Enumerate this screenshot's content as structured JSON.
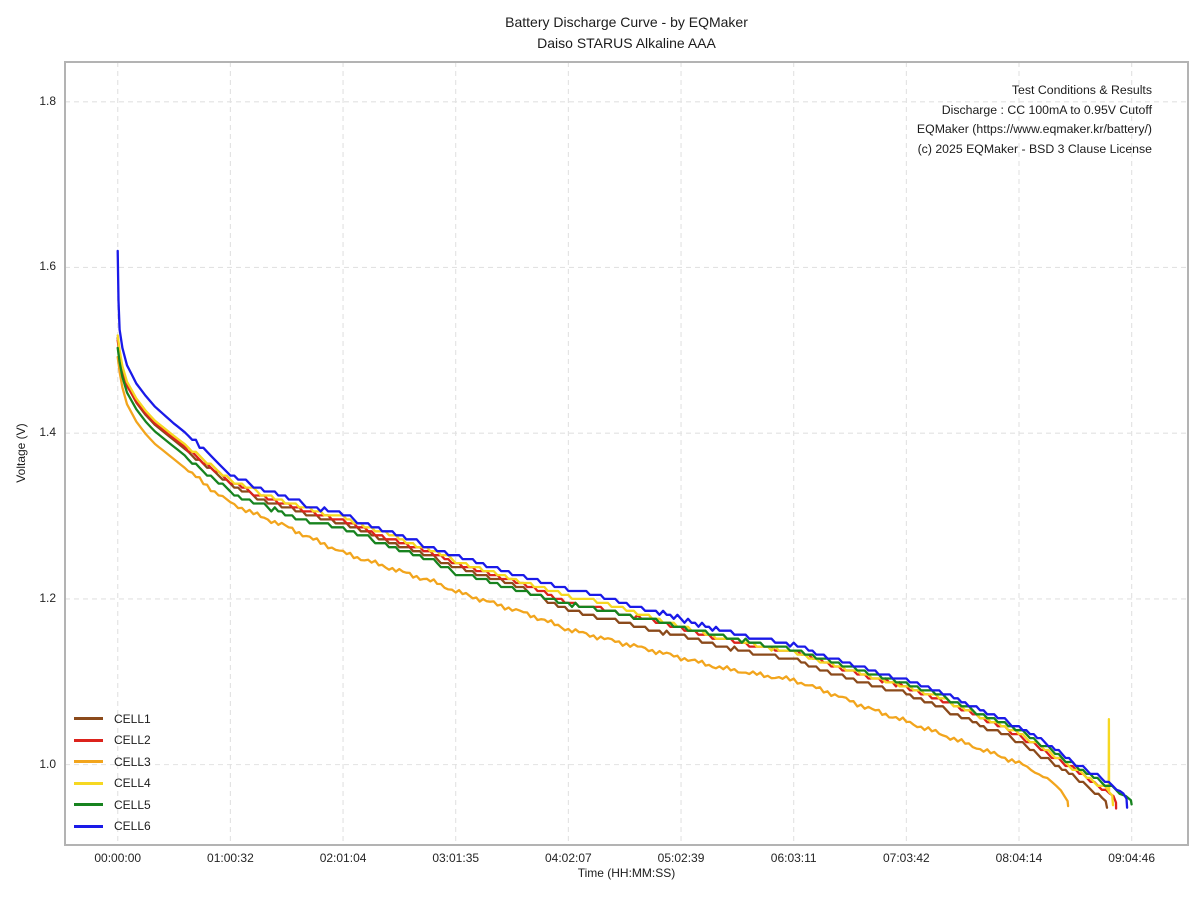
{
  "page": {
    "background": "#ffffff"
  },
  "chart_data": {
    "type": "line",
    "title": "Battery Discharge Curve - by EQMaker",
    "subtitle": "Daiso STARUS Alkaline AAA",
    "xlabel": "Time (HH:MM:SS)",
    "ylabel": "Voltage (V)",
    "annotation": {
      "align": "right",
      "lines": [
        "Test Conditions & Results",
        "Discharge : CC 100mA to 0.95V Cutoff",
        "EQMaker (https://www.eqmaker.kr/battery/)",
        "(c) 2025 EQMaker - BSD 3 Clause License"
      ]
    },
    "grid": true,
    "grid_style": "dashed",
    "grid_color": "#e2e2e2",
    "spine_color": "#b3b3b3",
    "legend_position": "lower-left",
    "x_domain_s": [
      -1700,
      34502
    ],
    "y_domain": [
      0.903,
      1.848
    ],
    "x_ticks": [
      {
        "s": 0,
        "label": "00:00:00"
      },
      {
        "s": 3632,
        "label": "01:00:32"
      },
      {
        "s": 7264,
        "label": "02:01:04"
      },
      {
        "s": 10895,
        "label": "03:01:35"
      },
      {
        "s": 14527,
        "label": "04:02:07"
      },
      {
        "s": 18159,
        "label": "05:02:39"
      },
      {
        "s": 21791,
        "label": "06:03:11"
      },
      {
        "s": 25423,
        "label": "07:03:42"
      },
      {
        "s": 29054,
        "label": "08:04:14"
      },
      {
        "s": 32686,
        "label": "09:04:46"
      }
    ],
    "y_ticks": [
      1.0,
      1.2,
      1.4,
      1.6,
      1.8
    ],
    "series": [
      {
        "name": "CELL1",
        "color": "#8B4A1B",
        "render": "stepped",
        "points": [
          [
            0,
            1.515
          ],
          [
            60,
            1.498
          ],
          [
            150,
            1.478
          ],
          [
            300,
            1.458
          ],
          [
            600,
            1.437
          ],
          [
            900,
            1.422
          ],
          [
            1200,
            1.41
          ],
          [
            1800,
            1.392
          ],
          [
            2400,
            1.374
          ],
          [
            3000,
            1.356
          ],
          [
            3632,
            1.338
          ],
          [
            4500,
            1.322
          ],
          [
            5400,
            1.31
          ],
          [
            6300,
            1.3
          ],
          [
            7264,
            1.292
          ],
          [
            8300,
            1.276
          ],
          [
            9300,
            1.262
          ],
          [
            10300,
            1.248
          ],
          [
            10895,
            1.238
          ],
          [
            12000,
            1.226
          ],
          [
            13200,
            1.21
          ],
          [
            14527,
            1.186
          ],
          [
            15800,
            1.176
          ],
          [
            17000,
            1.165
          ],
          [
            18159,
            1.155
          ],
          [
            19400,
            1.143
          ],
          [
            20600,
            1.134
          ],
          [
            21791,
            1.127
          ],
          [
            23000,
            1.112
          ],
          [
            24200,
            1.098
          ],
          [
            25423,
            1.086
          ],
          [
            26600,
            1.068
          ],
          [
            27800,
            1.048
          ],
          [
            29054,
            1.028
          ],
          [
            30000,
            1.006
          ],
          [
            31000,
            0.981
          ],
          [
            31500,
            0.968
          ],
          [
            31850,
            0.956
          ],
          [
            31890,
            0.948
          ]
        ]
      },
      {
        "name": "CELL2",
        "color": "#DC231C",
        "render": "stepped",
        "points": [
          [
            0,
            1.512
          ],
          [
            60,
            1.496
          ],
          [
            150,
            1.476
          ],
          [
            300,
            1.457
          ],
          [
            600,
            1.438
          ],
          [
            900,
            1.424
          ],
          [
            1200,
            1.412
          ],
          [
            1800,
            1.394
          ],
          [
            2400,
            1.377
          ],
          [
            3000,
            1.359
          ],
          [
            3632,
            1.341
          ],
          [
            4500,
            1.326
          ],
          [
            5400,
            1.314
          ],
          [
            6300,
            1.303
          ],
          [
            7264,
            1.295
          ],
          [
            8300,
            1.279
          ],
          [
            9300,
            1.266
          ],
          [
            10300,
            1.252
          ],
          [
            10895,
            1.244
          ],
          [
            12000,
            1.231
          ],
          [
            13200,
            1.216
          ],
          [
            14527,
            1.196
          ],
          [
            15800,
            1.186
          ],
          [
            17000,
            1.176
          ],
          [
            18159,
            1.164
          ],
          [
            19400,
            1.152
          ],
          [
            20600,
            1.143
          ],
          [
            21791,
            1.136
          ],
          [
            23000,
            1.121
          ],
          [
            24200,
            1.107
          ],
          [
            25423,
            1.094
          ],
          [
            26600,
            1.077
          ],
          [
            27800,
            1.057
          ],
          [
            29054,
            1.036
          ],
          [
            30000,
            1.014
          ],
          [
            31000,
            0.99
          ],
          [
            31600,
            0.975
          ],
          [
            32100,
            0.962
          ],
          [
            32180,
            0.954
          ],
          [
            32184,
            0.947
          ]
        ]
      },
      {
        "name": "CELL3",
        "color": "#F2A51D",
        "render": "noisy",
        "points": [
          [
            0,
            1.492
          ],
          [
            60,
            1.474
          ],
          [
            150,
            1.455
          ],
          [
            300,
            1.435
          ],
          [
            600,
            1.414
          ],
          [
            900,
            1.399
          ],
          [
            1200,
            1.387
          ],
          [
            1800,
            1.369
          ],
          [
            2400,
            1.351
          ],
          [
            3000,
            1.333
          ],
          [
            3632,
            1.316
          ],
          [
            4500,
            1.301
          ],
          [
            5400,
            1.288
          ],
          [
            6300,
            1.272
          ],
          [
            7264,
            1.256
          ],
          [
            8300,
            1.243
          ],
          [
            9300,
            1.231
          ],
          [
            10300,
            1.219
          ],
          [
            10895,
            1.209
          ],
          [
            12000,
            1.196
          ],
          [
            13200,
            1.182
          ],
          [
            14527,
            1.163
          ],
          [
            15800,
            1.151
          ],
          [
            17000,
            1.14
          ],
          [
            18159,
            1.129
          ],
          [
            19400,
            1.117
          ],
          [
            20600,
            1.109
          ],
          [
            21791,
            1.102
          ],
          [
            23000,
            1.086
          ],
          [
            24200,
            1.068
          ],
          [
            25423,
            1.052
          ],
          [
            26600,
            1.036
          ],
          [
            27800,
            1.019
          ],
          [
            29054,
            1.002
          ],
          [
            29700,
            0.989
          ],
          [
            30100,
            0.979
          ],
          [
            30400,
            0.969
          ],
          [
            30620,
            0.956
          ],
          [
            30636,
            0.95
          ]
        ]
      },
      {
        "name": "CELL4",
        "color": "#F6D822",
        "render": "stepped",
        "points": [
          [
            0,
            1.518
          ],
          [
            60,
            1.5
          ],
          [
            150,
            1.481
          ],
          [
            300,
            1.462
          ],
          [
            600,
            1.442
          ],
          [
            900,
            1.427
          ],
          [
            1200,
            1.415
          ],
          [
            1800,
            1.397
          ],
          [
            2400,
            1.38
          ],
          [
            3000,
            1.362
          ],
          [
            3632,
            1.344
          ],
          [
            4500,
            1.329
          ],
          [
            5400,
            1.317
          ],
          [
            6300,
            1.307
          ],
          [
            7264,
            1.299
          ],
          [
            8300,
            1.283
          ],
          [
            9300,
            1.27
          ],
          [
            10300,
            1.255
          ],
          [
            10895,
            1.246
          ],
          [
            12000,
            1.234
          ],
          [
            13200,
            1.219
          ],
          [
            14527,
            1.204
          ],
          [
            15800,
            1.193
          ],
          [
            17000,
            1.181
          ],
          [
            18159,
            1.167
          ],
          [
            19400,
            1.154
          ],
          [
            20600,
            1.144
          ],
          [
            21791,
            1.136
          ],
          [
            23000,
            1.121
          ],
          [
            24200,
            1.107
          ],
          [
            25423,
            1.095
          ],
          [
            26600,
            1.079
          ],
          [
            27800,
            1.059
          ],
          [
            29054,
            1.038
          ],
          [
            30000,
            1.016
          ],
          [
            31000,
            0.991
          ],
          [
            31700,
            0.975
          ],
          [
            31945,
            0.968
          ],
          [
            31952,
            1.055
          ],
          [
            31960,
            0.967
          ],
          [
            32060,
            0.963
          ],
          [
            32083,
            0.951
          ]
        ]
      },
      {
        "name": "CELL5",
        "color": "#17831F",
        "render": "stepped",
        "points": [
          [
            0,
            1.503
          ],
          [
            60,
            1.486
          ],
          [
            150,
            1.468
          ],
          [
            300,
            1.449
          ],
          [
            600,
            1.429
          ],
          [
            900,
            1.414
          ],
          [
            1200,
            1.402
          ],
          [
            1800,
            1.384
          ],
          [
            2400,
            1.366
          ],
          [
            3000,
            1.348
          ],
          [
            3632,
            1.329
          ],
          [
            4500,
            1.315
          ],
          [
            5400,
            1.303
          ],
          [
            6300,
            1.293
          ],
          [
            7264,
            1.285
          ],
          [
            8300,
            1.27
          ],
          [
            9300,
            1.257
          ],
          [
            10300,
            1.243
          ],
          [
            10895,
            1.231
          ],
          [
            12000,
            1.22
          ],
          [
            13200,
            1.207
          ],
          [
            14527,
            1.194
          ],
          [
            15800,
            1.185
          ],
          [
            17000,
            1.176
          ],
          [
            18159,
            1.167
          ],
          [
            19400,
            1.155
          ],
          [
            20600,
            1.146
          ],
          [
            21791,
            1.139
          ],
          [
            23000,
            1.124
          ],
          [
            24200,
            1.11
          ],
          [
            25423,
            1.099
          ],
          [
            26600,
            1.082
          ],
          [
            27800,
            1.062
          ],
          [
            29054,
            1.042
          ],
          [
            30000,
            1.02
          ],
          [
            31000,
            0.995
          ],
          [
            31700,
            0.979
          ],
          [
            32300,
            0.966
          ],
          [
            32500,
            0.962
          ],
          [
            32660,
            0.957
          ],
          [
            32684,
            0.952
          ]
        ]
      },
      {
        "name": "CELL6",
        "color": "#1A1AE8",
        "render": "stepped",
        "points": [
          [
            0,
            1.62
          ],
          [
            25,
            1.56
          ],
          [
            60,
            1.525
          ],
          [
            150,
            1.503
          ],
          [
            300,
            1.482
          ],
          [
            600,
            1.46
          ],
          [
            900,
            1.445
          ],
          [
            1200,
            1.432
          ],
          [
            1800,
            1.412
          ],
          [
            2400,
            1.394
          ],
          [
            3000,
            1.372
          ],
          [
            3632,
            1.35
          ],
          [
            4500,
            1.335
          ],
          [
            5400,
            1.322
          ],
          [
            6300,
            1.311
          ],
          [
            7264,
            1.301
          ],
          [
            8300,
            1.286
          ],
          [
            9300,
            1.273
          ],
          [
            10300,
            1.26
          ],
          [
            10895,
            1.253
          ],
          [
            12000,
            1.24
          ],
          [
            13200,
            1.226
          ],
          [
            14527,
            1.212
          ],
          [
            15800,
            1.2
          ],
          [
            17000,
            1.189
          ],
          [
            18159,
            1.176
          ],
          [
            19400,
            1.162
          ],
          [
            20600,
            1.152
          ],
          [
            21791,
            1.145
          ],
          [
            23000,
            1.129
          ],
          [
            24200,
            1.115
          ],
          [
            25423,
            1.103
          ],
          [
            26600,
            1.087
          ],
          [
            27800,
            1.067
          ],
          [
            29054,
            1.046
          ],
          [
            30000,
            1.024
          ],
          [
            31000,
            0.999
          ],
          [
            31700,
            0.983
          ],
          [
            32200,
            0.971
          ],
          [
            32420,
            0.965
          ],
          [
            32520,
            0.959
          ],
          [
            32540,
            0.948
          ]
        ]
      }
    ]
  }
}
